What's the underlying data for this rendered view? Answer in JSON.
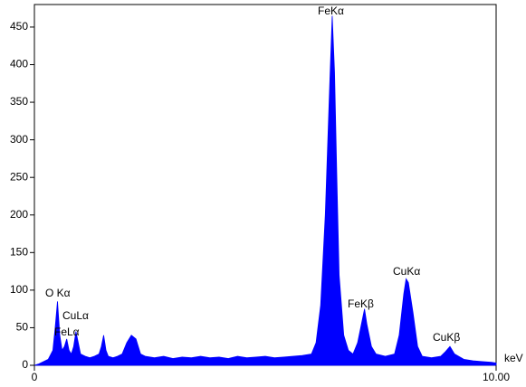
{
  "chart_data": {
    "type": "area",
    "x_label": "keV",
    "color": "#0000ff",
    "x": [
      0,
      0.1,
      0.2,
      0.3,
      0.4,
      0.45,
      0.5,
      0.55,
      0.6,
      0.65,
      0.7,
      0.75,
      0.8,
      0.85,
      0.9,
      0.95,
      1.0,
      1.1,
      1.2,
      1.3,
      1.4,
      1.45,
      1.5,
      1.55,
      1.6,
      1.7,
      1.8,
      1.9,
      2.0,
      2.1,
      2.2,
      2.3,
      2.4,
      2.6,
      2.8,
      3.0,
      3.2,
      3.4,
      3.6,
      3.8,
      4.0,
      4.2,
      4.4,
      4.6,
      4.8,
      5.0,
      5.2,
      5.4,
      5.6,
      5.8,
      6.0,
      6.1,
      6.2,
      6.3,
      6.4,
      6.45,
      6.5,
      6.55,
      6.6,
      6.7,
      6.8,
      6.9,
      7.0,
      7.1,
      7.15,
      7.2,
      7.3,
      7.4,
      7.6,
      7.8,
      7.9,
      8.0,
      8.05,
      8.1,
      8.2,
      8.3,
      8.4,
      8.6,
      8.8,
      8.9,
      9.0,
      9.1,
      9.3,
      9.5,
      9.7,
      9.9,
      10.0
    ],
    "values": [
      0,
      2,
      5,
      8,
      20,
      50,
      85,
      40,
      20,
      25,
      35,
      20,
      15,
      25,
      45,
      30,
      15,
      12,
      10,
      12,
      15,
      25,
      40,
      20,
      12,
      10,
      12,
      15,
      30,
      40,
      35,
      15,
      12,
      10,
      12,
      9,
      11,
      10,
      12,
      10,
      11,
      9,
      12,
      10,
      11,
      12,
      10,
      11,
      12,
      13,
      15,
      30,
      80,
      200,
      380,
      465,
      390,
      250,
      120,
      40,
      20,
      15,
      30,
      60,
      75,
      55,
      25,
      15,
      12,
      15,
      40,
      95,
      115,
      110,
      70,
      25,
      12,
      10,
      12,
      18,
      25,
      15,
      8,
      6,
      5,
      4,
      3
    ],
    "xlim": [
      0,
      10
    ],
    "xticks": [
      0,
      {
        "value": 10,
        "label": "10.00"
      }
    ],
    "ylim": [
      0,
      480
    ],
    "yticks": [
      0,
      50,
      100,
      150,
      200,
      250,
      300,
      350,
      400,
      450
    ],
    "annotations": [
      "O Kα",
      "CuLα",
      "FeLα",
      "FeKα",
      "FeKβ",
      "CuKα",
      "CuKβ"
    ]
  }
}
